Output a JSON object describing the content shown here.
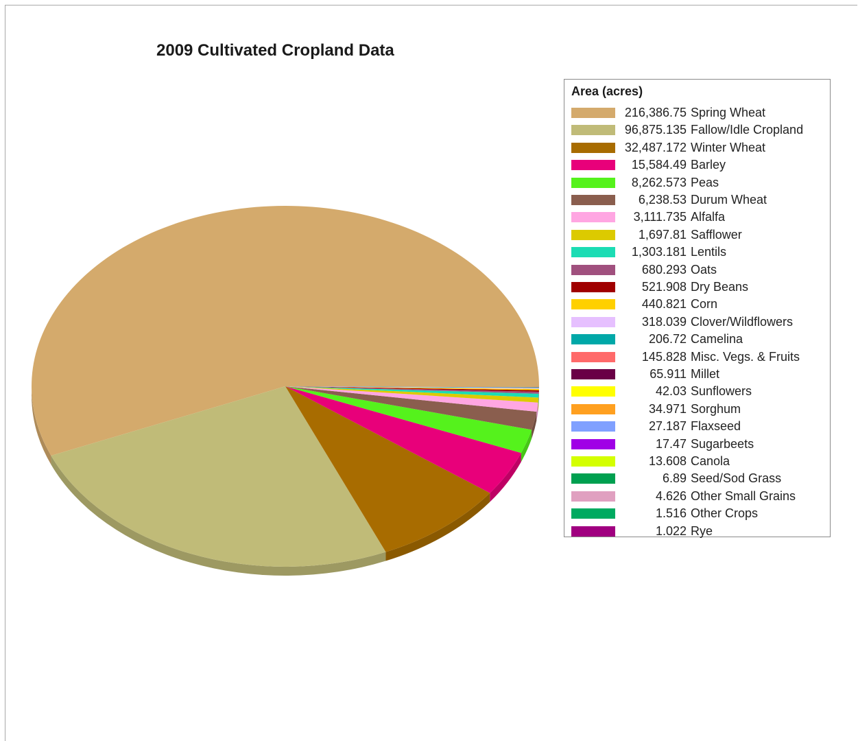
{
  "chart_data": {
    "type": "pie",
    "title": "2009 Cultivated Cropland Data",
    "legend_title": "Area (acres)",
    "legend_position": "right",
    "slices": [
      {
        "label": "Spring Wheat",
        "value_text": "216,386.75",
        "value": 216386.75,
        "color": "#d4aa6c"
      },
      {
        "label": "Fallow/Idle Cropland",
        "value_text": "96,875.135",
        "value": 96875.135,
        "color": "#c0bb78"
      },
      {
        "label": "Winter Wheat",
        "value_text": "32,487.172",
        "value": 32487.172,
        "color": "#a86c00"
      },
      {
        "label": "Barley",
        "value_text": "15,584.49",
        "value": 15584.49,
        "color": "#e8007a"
      },
      {
        "label": "Peas",
        "value_text": "8,262.573",
        "value": 8262.573,
        "color": "#55f21c"
      },
      {
        "label": "Durum Wheat",
        "value_text": "6,238.53",
        "value": 6238.53,
        "color": "#8a5e4e"
      },
      {
        "label": "Alfalfa",
        "value_text": "3,111.735",
        "value": 3111.735,
        "color": "#ffa6e2"
      },
      {
        "label": "Safflower",
        "value_text": "1,697.81",
        "value": 1697.81,
        "color": "#dcca00"
      },
      {
        "label": "Lentils",
        "value_text": "1,303.181",
        "value": 1303.181,
        "color": "#1cdcb4"
      },
      {
        "label": "Oats",
        "value_text": "680.293",
        "value": 680.293,
        "color": "#a0507e"
      },
      {
        "label": "Dry Beans",
        "value_text": "521.908",
        "value": 521.908,
        "color": "#a00000"
      },
      {
        "label": "Corn",
        "value_text": "440.821",
        "value": 440.821,
        "color": "#ffd000"
      },
      {
        "label": "Clover/Wildflowers",
        "value_text": "318.039",
        "value": 318.039,
        "color": "#e6c0ff"
      },
      {
        "label": "Camelina",
        "value_text": "206.72",
        "value": 206.72,
        "color": "#00a8a8"
      },
      {
        "label": "Misc. Vegs. & Fruits",
        "value_text": "145.828",
        "value": 145.828,
        "color": "#ff6a6a"
      },
      {
        "label": "Millet",
        "value_text": "65.911",
        "value": 65.911,
        "color": "#6a0046"
      },
      {
        "label": "Sunflowers",
        "value_text": "42.03",
        "value": 42.03,
        "color": "#ffff00"
      },
      {
        "label": "Sorghum",
        "value_text": "34.971",
        "value": 34.971,
        "color": "#ffa020"
      },
      {
        "label": "Flaxseed",
        "value_text": "27.187",
        "value": 27.187,
        "color": "#80a0ff"
      },
      {
        "label": "Sugarbeets",
        "value_text": "17.47",
        "value": 17.47,
        "color": "#a000e6"
      },
      {
        "label": "Canola",
        "value_text": "13.608",
        "value": 13.608,
        "color": "#d4ff00"
      },
      {
        "label": "Seed/Sod Grass",
        "value_text": "6.89",
        "value": 6.89,
        "color": "#00a050"
      },
      {
        "label": "Other Small Grains",
        "value_text": "4.626",
        "value": 4.626,
        "color": "#e0a0c0"
      },
      {
        "label": "Other Crops",
        "value_text": "1.516",
        "value": 1.516,
        "color": "#00aa60"
      },
      {
        "label": "Rye",
        "value_text": "1.022",
        "value": 1.022,
        "color": "#a00080"
      }
    ]
  }
}
